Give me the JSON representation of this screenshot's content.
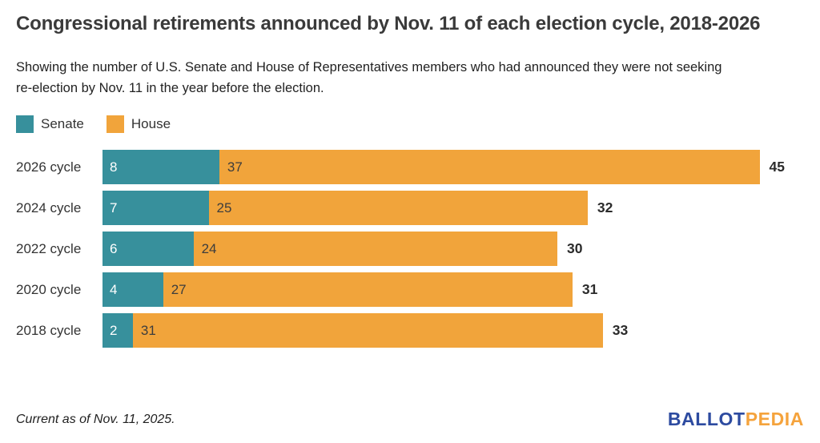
{
  "header": {
    "title": "Congressional retirements announced by Nov. 11 of each election cycle, 2018-2026",
    "subtitle": "Showing the number of U.S. Senate and House of Representatives members who had announced they were not seeking re-election by Nov. 11 in the year before the election."
  },
  "legend": {
    "items": [
      {
        "label": "Senate",
        "color": "#37909c"
      },
      {
        "label": "House",
        "color": "#f1a43b"
      }
    ],
    "position": "top-left"
  },
  "chart_data": {
    "type": "bar",
    "orientation": "horizontal",
    "stacked": true,
    "title": "Congressional retirements announced by Nov. 11 of each election cycle, 2018-2026",
    "categories": [
      "2026 cycle",
      "2024 cycle",
      "2022 cycle",
      "2020 cycle",
      "2018 cycle"
    ],
    "series": [
      {
        "name": "Senate",
        "color": "#37909c",
        "values": [
          8,
          7,
          6,
          4,
          2
        ]
      },
      {
        "name": "House",
        "color": "#f1a43b",
        "values": [
          37,
          25,
          24,
          27,
          31
        ]
      }
    ],
    "totals": [
      45,
      32,
      30,
      31,
      33
    ],
    "xlim": [
      0,
      45
    ],
    "grid": false,
    "axis_ticks": "none",
    "legend_position": "top-left"
  },
  "footer": {
    "note": "Current as of Nov. 11, 2025.",
    "logo": {
      "ballot": "BALLOT",
      "pedia": "PEDIA"
    }
  },
  "colors": {
    "senate": "#37909c",
    "house": "#f1a43b",
    "logo-blue": "#2d4ba0",
    "logo-gold": "#f5a33c",
    "text": "#333333"
  }
}
